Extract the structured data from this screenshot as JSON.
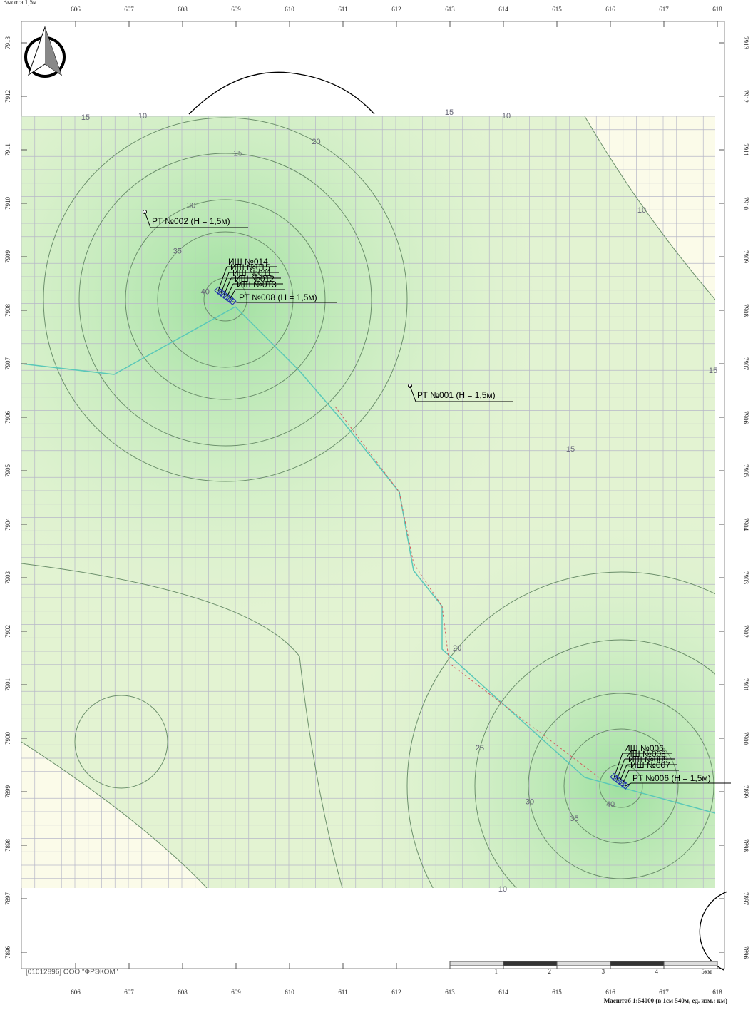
{
  "header": "Высота 1,5м",
  "x_axis": [
    606,
    607,
    608,
    609,
    610,
    611,
    612,
    613,
    614,
    615,
    616,
    617,
    618
  ],
  "y_axis": [
    7913,
    7912,
    7911,
    7910,
    7909,
    7908,
    7907,
    7906,
    7905,
    7904,
    7903,
    7902,
    7901,
    7900,
    7899,
    7898,
    7897,
    7896
  ],
  "points": [
    {
      "label": "РТ №002 (Н = 1,5м)"
    },
    {
      "label": "РТ №001 (Н = 1,5м)"
    }
  ],
  "sources": [
    {
      "labels": [
        "ИШ №014",
        "ИШ №015",
        "ИШ №011",
        "ИШ №012",
        "ИШ №013",
        "РТ №008 (Н = 1,5м)"
      ],
      "levels": [
        40,
        35,
        30,
        25,
        20
      ]
    },
    {
      "labels": [
        "ИШ №006",
        "ИШ №008",
        "ИШ №009",
        "ИШ №007",
        "РТ №006 (Н = 1,5м)"
      ],
      "levels": [
        40,
        35,
        30,
        25,
        20
      ]
    }
  ],
  "outer_levels": [
    15,
    10
  ],
  "scale": [
    "1",
    "2",
    "3",
    "4",
    "5км"
  ],
  "org": "[01012896] ООО \"ФРЭКОМ\"",
  "scale_note": "Масштаб 1:54000 (в 1см 540м, ед. изм.: км)"
}
